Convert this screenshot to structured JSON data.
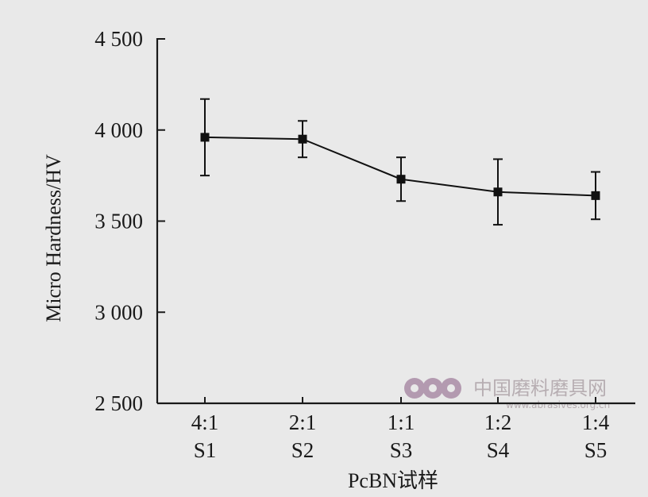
{
  "chart_data": {
    "type": "line",
    "xlabel": "PcBN试样",
    "ylabel": "Micro Hardness/HV",
    "ylim": [
      2500,
      4500
    ],
    "yticks": [
      2500,
      3000,
      3500,
      4000,
      4500
    ],
    "ytick_labels": [
      "2 500",
      "3 000",
      "3 500",
      "4 000",
      "4 500"
    ],
    "categories": [
      {
        "ratio": "4:1",
        "sample": "S1"
      },
      {
        "ratio": "2:1",
        "sample": "S2"
      },
      {
        "ratio": "1:1",
        "sample": "S3"
      },
      {
        "ratio": "1:2",
        "sample": "S4"
      },
      {
        "ratio": "1:4",
        "sample": "S5"
      }
    ],
    "series": [
      {
        "values": [
          3960,
          3950,
          3730,
          3660,
          3640
        ],
        "error": [
          [
            3750,
            4170
          ],
          [
            3850,
            4050
          ],
          [
            3610,
            3850
          ],
          [
            3480,
            3840
          ],
          [
            3510,
            3770
          ]
        ],
        "marker": "square",
        "color": "#111111"
      }
    ],
    "grid": false,
    "legend": false
  },
  "watermark": {
    "text": "中国磨料磨具网",
    "url": "www.abrasives.org.cn",
    "color": "#b39ab0"
  }
}
